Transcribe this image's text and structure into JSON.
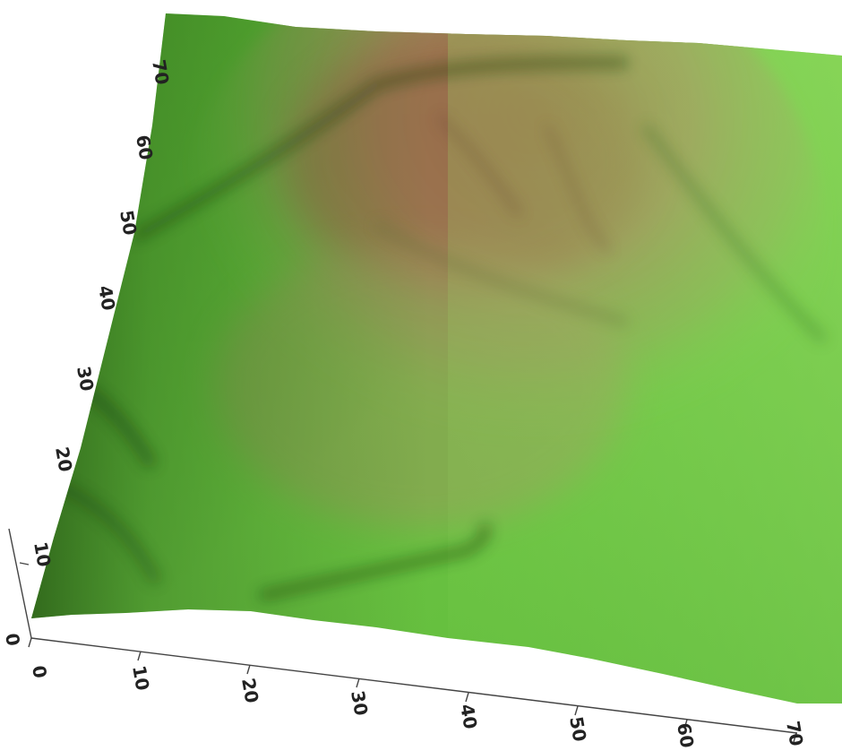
{
  "chart_data": {
    "type": "surface-3d",
    "title": "",
    "xlabel": "",
    "ylabel": "",
    "zlabel": "",
    "x_ticks": [
      "0",
      "10",
      "20",
      "30",
      "40",
      "50",
      "60",
      "70"
    ],
    "y_ticks": [
      "10",
      "20",
      "30",
      "40",
      "50",
      "60",
      "70"
    ],
    "z_ticks": [
      "0"
    ],
    "x_range": [
      0,
      70
    ],
    "y_range": [
      0,
      70
    ],
    "colormap": {
      "low": "#5fbf3a",
      "mid": "#9b8f52",
      "high": "#9a6a4a"
    },
    "grid": false,
    "legend": false
  }
}
